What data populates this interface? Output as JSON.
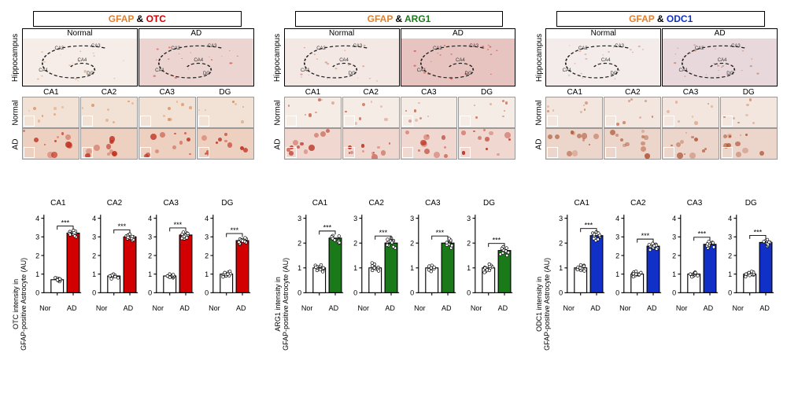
{
  "regions": [
    "CA1",
    "CA2",
    "CA3",
    "DG"
  ],
  "panel_conditions": [
    "Normal",
    "AD"
  ],
  "x_labels": [
    "Nor",
    "AD"
  ],
  "hippo_row_label": "Hippocampus",
  "ca_sublabels": [
    "CA1",
    "CA2",
    "CA3",
    "CA4",
    "DG"
  ],
  "sig_marker": "***",
  "columns": [
    {
      "gfap": "GFAP",
      "marker": "OTC",
      "marker_class": "red",
      "bar_color": "#d20000",
      "ylabel": "OTC intensity in\nGFAP-positive Astrocyte (AU)",
      "hippo_tint_normal": "#f6ece8",
      "hippo_tint_ad": "#ecd4d0",
      "tile_normal_bg": "#f2e2d5",
      "tile_ad_bg": "#eed0c0",
      "tile_blob_normal": "#d89060",
      "tile_blob_ad": "#c03020",
      "charts": [
        {
          "region": "CA1",
          "ymax": 4,
          "ytick": 1,
          "nor": 0.7,
          "ad": 3.2,
          "nor_scatter": [
            0.6,
            0.7,
            0.75,
            0.8,
            0.65,
            0.7,
            0.78,
            0.72,
            0.68,
            0.74
          ],
          "ad_scatter": [
            3.0,
            3.1,
            3.2,
            3.3,
            3.25,
            3.15,
            3.05,
            3.28,
            3.18,
            3.35,
            3.22,
            3.12
          ]
        },
        {
          "region": "CA2",
          "ymax": 4,
          "ytick": 1,
          "nor": 0.9,
          "ad": 3.0,
          "nor_scatter": [
            0.8,
            0.85,
            0.9,
            0.95,
            1.0,
            0.88,
            0.92,
            0.86,
            0.94,
            0.9,
            0.75
          ],
          "ad_scatter": [
            2.8,
            2.9,
            3.0,
            3.1,
            3.05,
            2.95,
            2.85,
            3.08,
            2.92,
            3.02,
            2.98,
            3.15
          ]
        },
        {
          "region": "CA3",
          "ymax": 4,
          "ytick": 1,
          "nor": 0.9,
          "ad": 3.1,
          "nor_scatter": [
            0.8,
            0.85,
            0.9,
            0.95,
            1.0,
            0.87,
            0.93,
            0.83,
            0.97,
            0.9
          ],
          "ad_scatter": [
            2.9,
            3.0,
            3.1,
            3.2,
            3.05,
            2.95,
            3.15,
            3.08,
            2.92,
            3.02,
            3.18,
            3.25
          ]
        },
        {
          "region": "DG",
          "ymax": 4,
          "ytick": 1,
          "nor": 1.0,
          "ad": 2.8,
          "nor_scatter": [
            0.9,
            0.95,
            1.0,
            1.05,
            1.1,
            0.98,
            1.02,
            0.92,
            1.08,
            1.0,
            0.85,
            1.15
          ],
          "ad_scatter": [
            2.6,
            2.7,
            2.8,
            2.9,
            2.85,
            2.75,
            2.65,
            2.88,
            2.72,
            2.82,
            2.78,
            2.95
          ]
        }
      ]
    },
    {
      "gfap": "GFAP",
      "marker": "ARG1",
      "marker_class": "green",
      "bar_color": "#1a7a1a",
      "ylabel": "ARG1 intensity in\nGFAP-positive Astrocyte (AU)",
      "hippo_tint_normal": "#f4e8e4",
      "hippo_tint_ad": "#e8c4c0",
      "tile_normal_bg": "#f6ece6",
      "tile_ad_bg": "#f0d8d0",
      "tile_blob_normal": "#c86850",
      "tile_blob_ad": "#b82818",
      "charts": [
        {
          "region": "CA1",
          "ymax": 3,
          "ytick": 1,
          "nor": 1.0,
          "ad": 2.2,
          "nor_scatter": [
            0.9,
            0.95,
            1.0,
            1.05,
            1.1,
            0.97,
            1.03,
            0.93,
            1.07,
            1.0,
            0.85,
            1.12
          ],
          "ad_scatter": [
            2.0,
            2.1,
            2.2,
            2.3,
            2.15,
            2.05,
            2.25,
            2.18,
            2.02,
            2.12,
            2.28
          ]
        },
        {
          "region": "CA2",
          "ymax": 3,
          "ytick": 1,
          "nor": 1.0,
          "ad": 2.0,
          "nor_scatter": [
            0.9,
            0.95,
            1.0,
            1.05,
            1.1,
            0.98,
            1.02,
            0.94,
            1.08,
            1.0,
            0.88,
            1.15,
            1.2
          ],
          "ad_scatter": [
            1.8,
            1.9,
            2.0,
            2.1,
            2.05,
            1.95,
            1.85,
            2.08,
            1.92,
            2.02,
            2.15,
            2.2
          ]
        },
        {
          "region": "CA3",
          "ymax": 3,
          "ytick": 1,
          "nor": 1.0,
          "ad": 2.0,
          "nor_scatter": [
            0.9,
            0.95,
            1.0,
            1.05,
            1.1,
            0.97,
            1.03,
            0.92,
            1.07,
            1.0,
            0.86
          ],
          "ad_scatter": [
            1.8,
            1.9,
            2.0,
            2.1,
            2.05,
            1.95,
            2.08,
            1.92,
            2.02,
            2.12,
            2.18
          ]
        },
        {
          "region": "DG",
          "ymax": 3,
          "ytick": 1,
          "nor": 1.0,
          "ad": 1.7,
          "nor_scatter": [
            0.85,
            0.9,
            0.95,
            1.0,
            1.05,
            1.1,
            0.98,
            1.02,
            0.92,
            1.07,
            1.0,
            1.15,
            0.82
          ],
          "ad_scatter": [
            1.5,
            1.55,
            1.6,
            1.65,
            1.7,
            1.75,
            1.8,
            1.85,
            1.68,
            1.72,
            1.62,
            1.78
          ]
        }
      ]
    },
    {
      "gfap": "GFAP",
      "marker": "ODC1",
      "marker_class": "blue",
      "bar_color": "#1030c8",
      "ylabel": "ODC1 intensity in\nGFAP-positive Astrocyte (AU)",
      "hippo_tint_normal": "#f4ecea",
      "hippo_tint_ad": "#e8d8dc",
      "tile_normal_bg": "#f2e6de",
      "tile_ad_bg": "#ecd6cc",
      "tile_blob_normal": "#cc8060",
      "tile_blob_ad": "#b05838",
      "charts": [
        {
          "region": "CA1",
          "ymax": 3,
          "ytick": 1,
          "nor": 1.0,
          "ad": 2.3,
          "nor_scatter": [
            0.9,
            0.95,
            1.0,
            1.05,
            1.1,
            0.97,
            1.03,
            0.93,
            1.07,
            1.0,
            1.12,
            0.88
          ],
          "ad_scatter": [
            2.1,
            2.2,
            2.3,
            2.4,
            2.25,
            2.15,
            2.35,
            2.28,
            2.18,
            2.32,
            2.4,
            2.45
          ]
        },
        {
          "region": "CA2",
          "ymax": 4,
          "ytick": 1,
          "nor": 1.0,
          "ad": 2.5,
          "nor_scatter": [
            0.9,
            0.95,
            1.0,
            1.05,
            1.1,
            0.98,
            1.02,
            0.93,
            1.08,
            1.0,
            0.86,
            1.15
          ],
          "ad_scatter": [
            2.3,
            2.4,
            2.5,
            2.6,
            2.55,
            2.45,
            2.35,
            2.58,
            2.42,
            2.52,
            2.65
          ]
        },
        {
          "region": "CA3",
          "ymax": 4,
          "ytick": 1,
          "nor": 1.0,
          "ad": 2.6,
          "nor_scatter": [
            0.9,
            0.95,
            1.0,
            1.05,
            1.1,
            0.97,
            1.03,
            0.92,
            1.07,
            1.0,
            0.85
          ],
          "ad_scatter": [
            2.4,
            2.5,
            2.6,
            2.7,
            2.65,
            2.55,
            2.45,
            2.68,
            2.52,
            2.62,
            2.75
          ]
        },
        {
          "region": "DG",
          "ymax": 4,
          "ytick": 1,
          "nor": 1.0,
          "ad": 2.7,
          "nor_scatter": [
            0.9,
            0.95,
            1.0,
            1.05,
            1.1,
            0.98,
            1.02,
            0.93,
            1.08,
            1.0,
            0.86,
            1.14
          ],
          "ad_scatter": [
            2.5,
            2.6,
            2.7,
            2.8,
            2.75,
            2.65,
            2.55,
            2.78,
            2.62,
            2.72,
            2.85
          ]
        }
      ]
    }
  ],
  "axis_color": "#000",
  "bar_nor_fill": "#ffffff",
  "bar_stroke": "#000",
  "scatter_fill": "#ffffff",
  "scatter_stroke": "#000",
  "scatter_r": 1.6,
  "tick_fontsize": 8
}
